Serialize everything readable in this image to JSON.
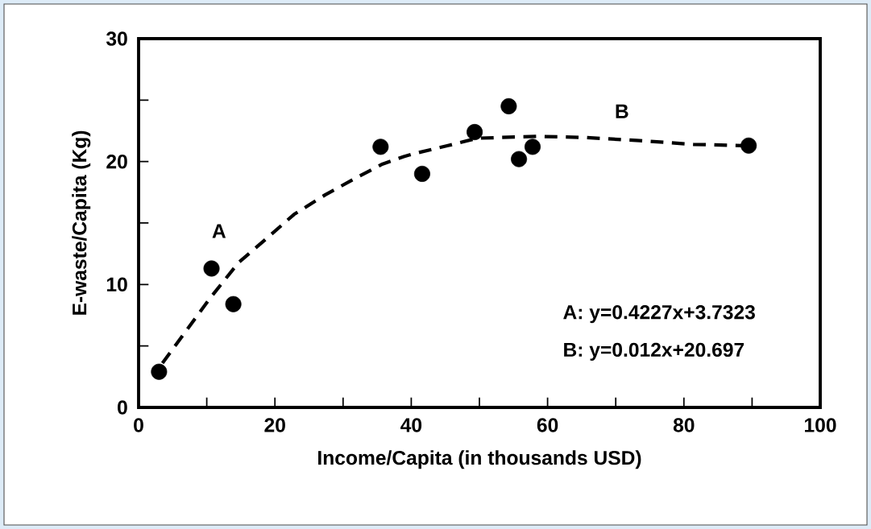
{
  "chart_data": {
    "type": "scatter",
    "xlabel": "Income/Capita (in thousands USD)",
    "ylabel": "E-waste/Capita  (Kg)",
    "xlim": [
      0,
      100
    ],
    "ylim": [
      0,
      30
    ],
    "xticks": [
      0,
      {
        "value": 10,
        "label": null
      },
      20,
      {
        "value": 30,
        "label": null
      },
      40,
      {
        "value": 50,
        "label": null
      },
      60,
      {
        "value": 70,
        "label": null
      },
      80,
      {
        "value": 90,
        "label": null
      },
      100
    ],
    "yticks": [
      0,
      {
        "value": 5,
        "label": null
      },
      10,
      {
        "value": 15,
        "label": null
      },
      20,
      {
        "value": 25,
        "label": null
      },
      30
    ],
    "grid": false,
    "marker": "circle",
    "series": [
      {
        "color": "#000000",
        "x": [
          3.0,
          10.7,
          13.9,
          35.5,
          41.6,
          49.3,
          54.3,
          55.8,
          57.8,
          89.5
        ],
        "values": [
          2.9,
          11.3,
          8.4,
          21.2,
          19.0,
          22.4,
          24.5,
          20.2,
          21.2,
          21.3
        ]
      },
      {
        "type": "line",
        "color": "#000000",
        "marker": "none",
        "line_style": "dashed",
        "x": [
          3.5,
          10.5,
          14.7,
          18.9,
          22.8,
          27.4,
          32.0,
          35.8,
          38.9,
          40.1,
          45.4,
          49.7,
          58.4,
          65.5,
          73.5,
          81.4,
          88.6
        ],
        "values": [
          3.6,
          8.9,
          11.8,
          13.8,
          15.7,
          17.3,
          18.7,
          19.8,
          20.4,
          20.6,
          21.3,
          21.9,
          22.05,
          21.96,
          21.7,
          21.4,
          21.3
        ]
      }
    ],
    "annotations": [
      "A",
      "B",
      "A:  y=0.4227x+3.7323",
      "B:  y=0.012x+20.697"
    ]
  }
}
